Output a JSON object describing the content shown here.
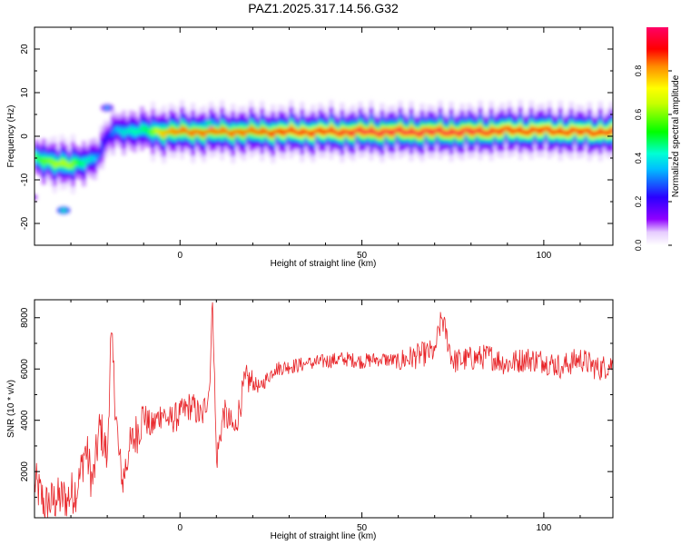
{
  "title": "PAZ1.2025.317.14.56.G32",
  "colors": {
    "snr_line": "#e8262a",
    "axis": "#000000",
    "background": "#ffffff"
  },
  "chart_data": [
    {
      "type": "heatmap",
      "xlabel": "Height of straight line (km)",
      "ylabel": "Frequency (Hz)",
      "xlim": [
        -40,
        119
      ],
      "ylim": [
        -25,
        25
      ],
      "xticks": [
        0,
        50,
        100
      ],
      "yticks": [
        -20,
        -10,
        0,
        10,
        20
      ],
      "grid": false,
      "colorbar": {
        "label": "Normalized spectral amplitude",
        "range": [
          0,
          1
        ],
        "ticks": [
          "0.0",
          "0.2",
          "0.4",
          "0.6",
          "0.8"
        ],
        "colormap": "rainbow (white-violet-blue-cyan-green-yellow-red-magenta)"
      },
      "ridge": {
        "description": "dominant frequency vs height",
        "x": [
          -38,
          -34,
          -30,
          -27,
          -24,
          -22,
          -20,
          -17,
          -14,
          -10,
          -5,
          0,
          10,
          20,
          30,
          40,
          50,
          60,
          70,
          80,
          90,
          100,
          110,
          119
        ],
        "y": [
          -5.5,
          -6,
          -6.8,
          -6,
          -5,
          -4,
          0,
          1.5,
          1.2,
          1.2,
          1,
          1,
          1,
          1,
          1,
          1,
          1,
          1,
          1,
          1,
          1.3,
          1.3,
          1,
          1
        ],
        "intensity": [
          0.65,
          0.7,
          0.7,
          0.55,
          0.45,
          0.35,
          0.3,
          0.45,
          0.5,
          0.55,
          0.8,
          0.85,
          0.85,
          0.85,
          0.9,
          0.9,
          0.95,
          0.95,
          0.95,
          0.95,
          0.9,
          0.9,
          0.9,
          0.9
        ]
      },
      "blobs": [
        {
          "x": -41,
          "y": -14,
          "intensity": 0.15
        },
        {
          "x": -32,
          "y": -17,
          "intensity": 0.3
        },
        {
          "x": -20,
          "y": 6.5,
          "intensity": 0.2
        },
        {
          "x": 8,
          "y": 3,
          "intensity": 0.4
        }
      ]
    },
    {
      "type": "line",
      "xlabel": "Height of straight line (km)",
      "ylabel": "SNR (10 * v/v)",
      "xlim": [
        -40,
        119
      ],
      "ylim": [
        200,
        8700
      ],
      "xticks": [
        0,
        50,
        100
      ],
      "yticks": [
        2000,
        4000,
        6000,
        8000
      ],
      "grid": false,
      "series": [
        {
          "x": [
            -40,
            -37,
            -34,
            -31,
            -28,
            -26,
            -24,
            -22,
            -20,
            -19,
            -17,
            -16,
            -14,
            -12,
            -10,
            -8,
            -5,
            -3,
            0,
            3,
            6,
            8,
            9,
            10,
            12,
            15,
            18,
            22,
            26,
            30,
            35,
            40,
            45,
            50,
            55,
            60,
            65,
            70,
            72,
            75,
            80,
            85,
            90,
            95,
            100,
            105,
            110,
            115,
            119
          ],
          "y": [
            1600,
            700,
            900,
            1000,
            1400,
            3000,
            1500,
            3800,
            2500,
            7400,
            3000,
            1500,
            2800,
            3500,
            4200,
            3700,
            4300,
            4000,
            4200,
            4600,
            4100,
            5200,
            8600,
            2400,
            4300,
            3600,
            5600,
            5300,
            6000,
            6100,
            6200,
            6300,
            6400,
            6300,
            6400,
            6300,
            6500,
            6700,
            8000,
            6300,
            6400,
            6500,
            6200,
            6400,
            6300,
            6100,
            6400,
            6000,
            6200
          ]
        }
      ]
    }
  ]
}
